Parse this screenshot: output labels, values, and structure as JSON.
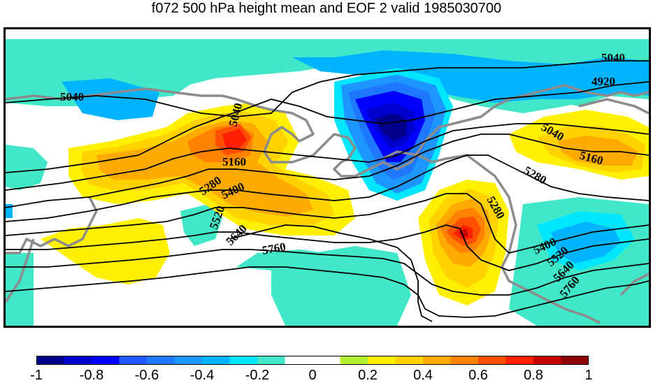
{
  "title": "f072 500 hPa height mean and EOF 2 valid 1985030700",
  "contour_labels": [
    "5040",
    "4920",
    "5040",
    "5040",
    "5160",
    "5280",
    "5400",
    "5520",
    "5640",
    "5760",
    "5160",
    "5040",
    "5280",
    "5280",
    "5400",
    "5520",
    "5640",
    "5760"
  ],
  "colorbar": {
    "colors": [
      "#00008b",
      "#0000cd",
      "#0000ff",
      "#1e5aff",
      "#1e78ff",
      "#1e96ff",
      "#00b4ff",
      "#00e6ff",
      "#40e8c8",
      "#ffffff",
      "#ffffff",
      "#b4f032",
      "#fff000",
      "#ffd200",
      "#ffaa00",
      "#ff8200",
      "#ff5000",
      "#ff1e00",
      "#c80000",
      "#8b0000"
    ],
    "ticks": [
      "-1",
      "-0.8",
      "-0.6",
      "-0.4",
      "-0.2",
      "0",
      "0.2",
      "0.4",
      "0.6",
      "0.8",
      "1"
    ]
  }
}
